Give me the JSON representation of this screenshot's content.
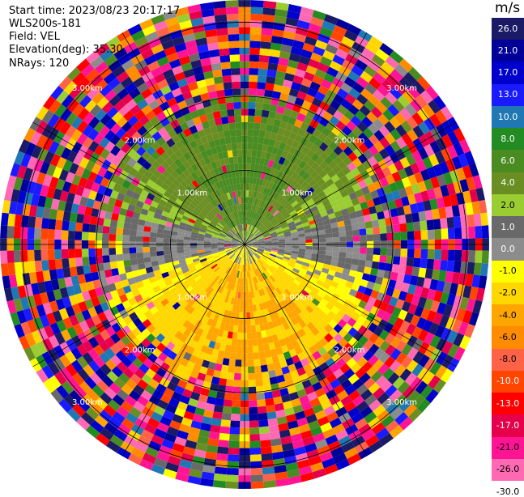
{
  "info": {
    "start_time": "Start time: 2023/08/23 20:17:17",
    "instrument": "WLS200s-181",
    "field": "Field: VEL",
    "elevation": "Elevation(deg): 35.30",
    "nrays": "NRays: 120"
  },
  "colorbar": {
    "title": "m/s",
    "colors": [
      "#1a1a66",
      "#000099",
      "#0000cc",
      "#1a1aff",
      "#1f78b4",
      "#228b22",
      "#4a8c22",
      "#6b8e23",
      "#9acd32",
      "#696969",
      "#8c8c8c",
      "#ffff00",
      "#ffd700",
      "#ffa500",
      "#ff8c00",
      "#ff6347",
      "#ff4500",
      "#ff0000",
      "#e6004c",
      "#ff1493",
      "#ff69b4"
    ],
    "labels": [
      "26.0",
      "21.0",
      "17.0",
      "13.0",
      "10.0",
      "8.0",
      "6.0",
      "4.0",
      "2.0",
      "1.0",
      "0.0",
      "-1.0",
      "-2.0",
      "-4.0",
      "-6.0",
      "-8.0",
      "-10.0",
      "-13.0",
      "-17.0",
      "-21.0",
      "-26.0",
      "-30.0"
    ]
  },
  "chart_data": {
    "type": "heatmap",
    "title": "",
    "projection": "polar (range rings, ray azimuths)",
    "rays": 120,
    "field": "VEL",
    "units": "m/s",
    "range_ring_labels_km": [
      "1.00km",
      "2.00km",
      "3.00km"
    ],
    "range_rings": [
      1.0,
      2.0,
      3.0
    ],
    "max_range_km": 3.3,
    "color_scale_limits": [
      -30.0,
      26.0
    ],
    "pattern": {
      "inner_north_half": "positive velocities 1-8 m/s (yellow/orange)",
      "inner_south_half": "negative velocities -1 to -6 m/s (olive/green)",
      "center_east_west": "near zero (gray)",
      "outer": "noisy, random values across full scale"
    }
  }
}
